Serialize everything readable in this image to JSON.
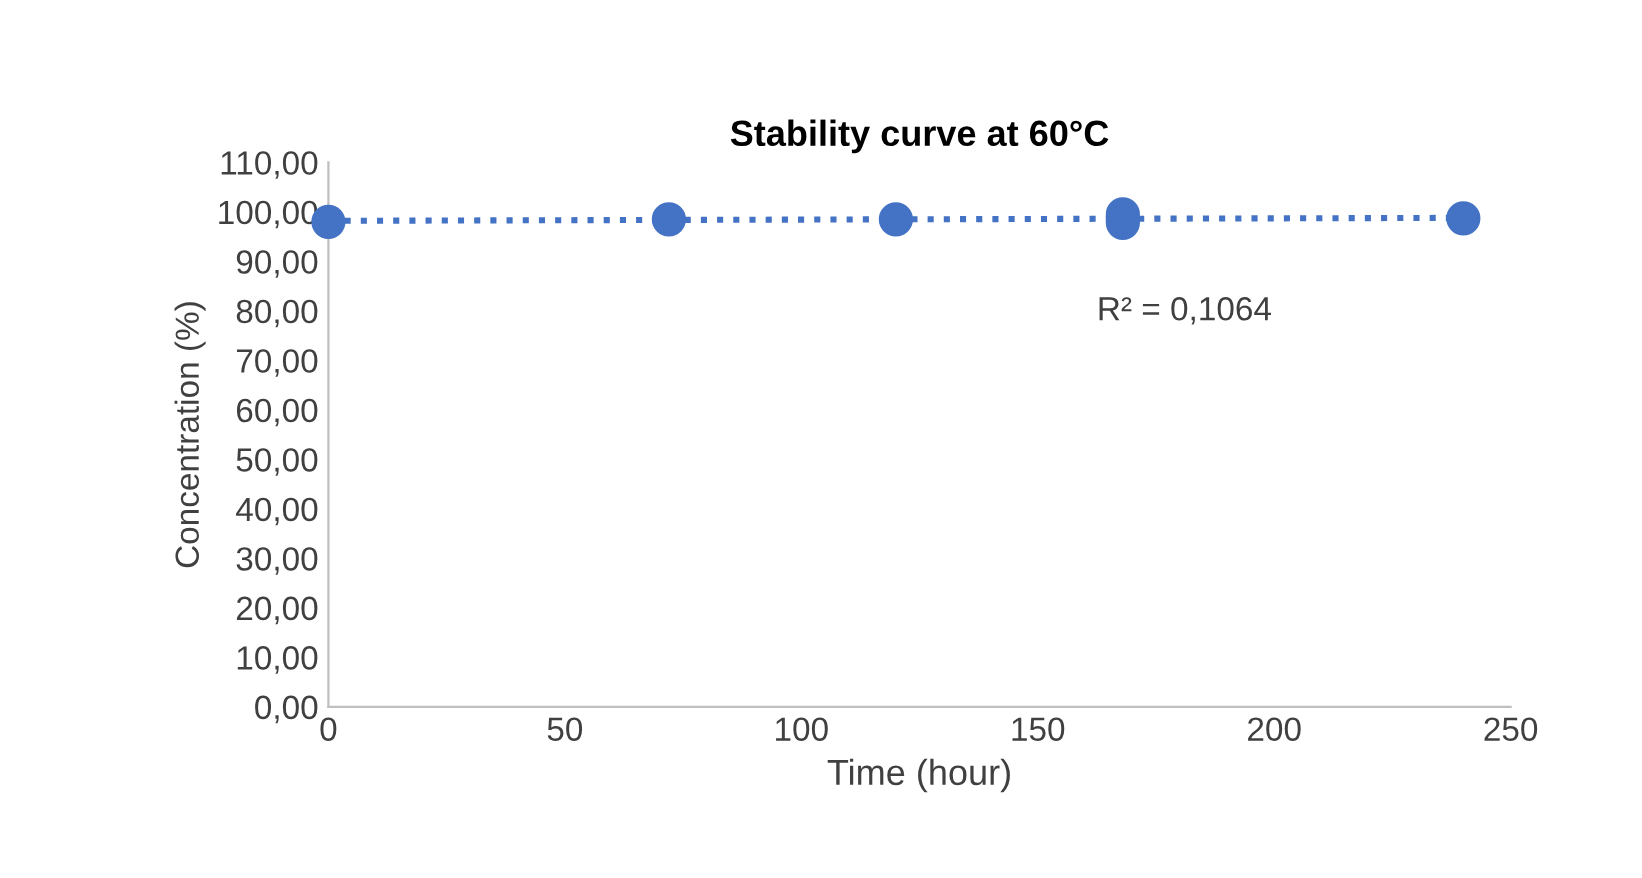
{
  "chart_data": {
    "type": "scatter",
    "title": "Stability curve at 60°C",
    "xlabel": "Time (hour)",
    "ylabel": "Concentration (%)",
    "series": [
      {
        "color": "#4472c4",
        "x": [
          0,
          72,
          120,
          168,
          168,
          240
        ],
        "values": [
          98.0,
          98.5,
          98.5,
          99.5,
          97.8,
          98.7
        ],
        "marker": "circle"
      },
      {
        "type": "line",
        "color": "#4472c4",
        "x": [
          0,
          240
        ],
        "values": [
          98.2,
          98.8
        ],
        "line_style": "dotted"
      }
    ],
    "annotations": [
      "R² = 0,1064"
    ],
    "xlim": [
      0,
      250
    ],
    "xticks": [
      0,
      50,
      100,
      150,
      200,
      250
    ],
    "ylim": [
      0,
      110
    ],
    "yticks": [
      {
        "value": 0,
        "label": "0,00"
      },
      {
        "value": 10,
        "label": "10,00"
      },
      {
        "value": 20,
        "label": "20,00"
      },
      {
        "value": 30,
        "label": "30,00"
      },
      {
        "value": 40,
        "label": "40,00"
      },
      {
        "value": 50,
        "label": "50,00"
      },
      {
        "value": 60,
        "label": "60,00"
      },
      {
        "value": 70,
        "label": "70,00"
      },
      {
        "value": 80,
        "label": "80,00"
      },
      {
        "value": 90,
        "label": "90,00"
      },
      {
        "value": 100,
        "label": "100,00"
      },
      {
        "value": 110,
        "label": "110,00"
      }
    ],
    "grid": false,
    "legend": false
  }
}
